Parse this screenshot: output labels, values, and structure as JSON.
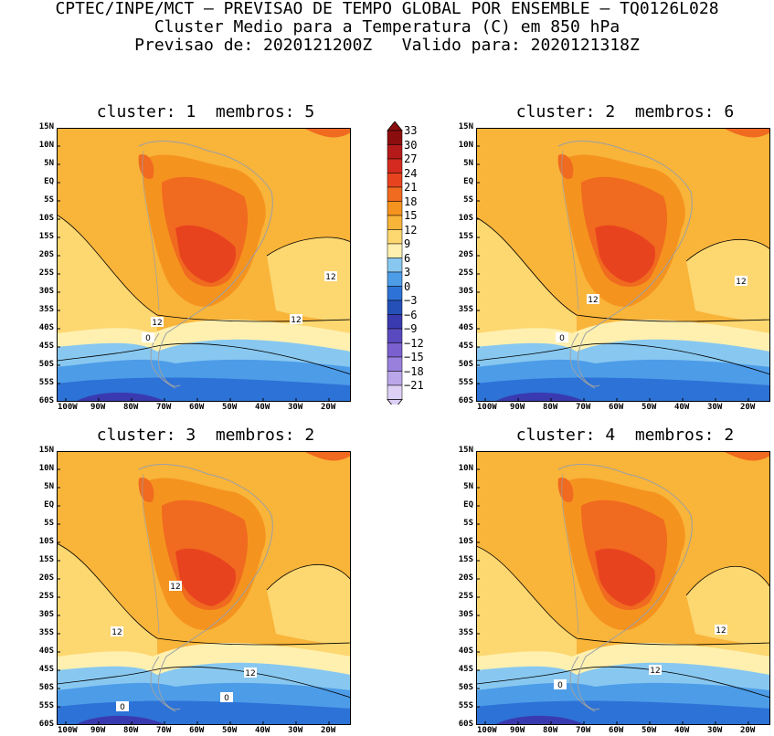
{
  "header": {
    "line1": "CPTEC/INPE/MCT – PREVISAO DE TEMPO GLOBAL POR ENSEMBLE – TQ0126L028",
    "line2": "Cluster Medio para a Temperatura (C) em 850 hPa",
    "line3": "Previsao de: 2020121200Z   Valido para: 2020121318Z"
  },
  "panels": [
    {
      "title": "cluster: 1  membros: 5",
      "contour_labels": [
        "12",
        "12",
        "12",
        "0"
      ]
    },
    {
      "title": "cluster: 2  membros: 6",
      "contour_labels": [
        "12",
        "12",
        "0"
      ]
    },
    {
      "title": "cluster: 3  membros: 2",
      "contour_labels": [
        "12",
        "12",
        "12",
        "0",
        "0"
      ]
    },
    {
      "title": "cluster: 4  membros: 2",
      "contour_labels": [
        "12",
        "12",
        "0"
      ]
    }
  ],
  "axes": {
    "lat_ticks": [
      "15N",
      "10N",
      "5N",
      "EQ",
      "5S",
      "10S",
      "15S",
      "20S",
      "25S",
      "30S",
      "35S",
      "40S",
      "45S",
      "50S",
      "55S",
      "60S"
    ],
    "lon_ticks": [
      "100W",
      "90W",
      "80W",
      "70W",
      "60W",
      "50W",
      "40W",
      "30W",
      "20W"
    ]
  },
  "colorbar": {
    "labels": [
      "33",
      "30",
      "27",
      "24",
      "21",
      "18",
      "15",
      "12",
      "9",
      "6",
      "3",
      "0",
      "−3",
      "−6",
      "−9",
      "−12",
      "−15",
      "−18",
      "−21"
    ],
    "colors": [
      "#8c0d0d",
      "#b51a1a",
      "#d42a1f",
      "#e8431f",
      "#f06a1f",
      "#f5931f",
      "#f9b43a",
      "#fdd770",
      "#fff0b0",
      "#88c8f0",
      "#4d9ce8",
      "#2d72d6",
      "#2450b8",
      "#3a3ab0",
      "#5a4abf",
      "#7a60cf",
      "#9a80dd",
      "#bba6ea",
      "#ddd0f5"
    ]
  }
}
